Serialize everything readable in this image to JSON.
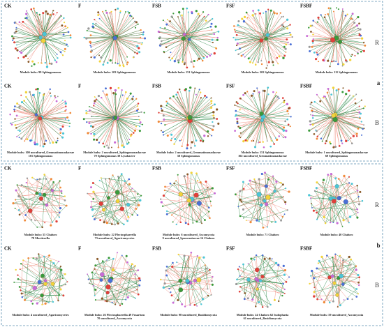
{
  "sections": [
    {
      "label": "a",
      "rows": [
        {
          "label": "R",
          "panels": [
            {
              "title": "CK",
              "hubs": [
                "Module hubs: 99 Sphingomonas"
              ]
            },
            {
              "title": "F",
              "hubs": [
                "Module hubs: 103 Sphingomonas"
              ]
            },
            {
              "title": "FSB",
              "hubs": [
                "Module hubs: 151 Sphingomonas"
              ]
            },
            {
              "title": "FSF",
              "hubs": [
                "Module hubs: 202 Sphingomonas"
              ]
            },
            {
              "title": "FSBF",
              "hubs": [
                "Module hubs: 111 Sphingomonas"
              ]
            }
          ]
        },
        {
          "label": "B",
          "panels": [
            {
              "title": "CK",
              "hubs": [
                "Module hubs: 100 uncultured_Gemmatimonadaceae",
                "101 Sphingomonas"
              ]
            },
            {
              "title": "F",
              "hubs": [
                "Module hubs: 2 uncultured_Sphingomonadaceae",
                "79 Sphingomonas  30 Lysobacter"
              ]
            },
            {
              "title": "FSB",
              "hubs": [
                "Module hubs: 2 uncultured_Gemmatimonadaceae",
                "58 Sphingomonas"
              ]
            },
            {
              "title": "FSF",
              "hubs": [
                "Module hubs: 151 Sphingomonas",
                "102 uncultured_Gemmatimonadaceae"
              ]
            },
            {
              "title": "FSBF",
              "hubs": [
                "Module hubs: 1 uncultured_Sphingomonadaceae",
                "69 Sphingomonas"
              ]
            }
          ]
        }
      ]
    },
    {
      "label": "b",
      "rows": [
        {
          "label": "R",
          "panels": [
            {
              "title": "CK",
              "hubs": [
                "Module hubs: 55 Chaluro",
                "78 Mortierella"
              ]
            },
            {
              "title": "F",
              "hubs": [
                "Module hubs: 22 Plectosphaerella",
                "73 uncultured_Agaricomycetes"
              ]
            },
            {
              "title": "FSB",
              "hubs": [
                "Module hubs: 6 uncultured_Ascomycota",
                "9 uncultured_Sporormiaceae  14 Chaluro"
              ]
            },
            {
              "title": "FSF",
              "hubs": [
                "Module hubs: 71 Chaluro"
              ]
            },
            {
              "title": "FSBF",
              "hubs": [
                "Module hubs: 40 Chaluro"
              ]
            }
          ]
        },
        {
          "label": "B",
          "panels": [
            {
              "title": "CK",
              "hubs": [
                "Module hubs: 4 uncultured_Agaricomycetes"
              ]
            },
            {
              "title": "F",
              "hubs": [
                "Module hubs: 26 Plectosphaerella  49 Fusarium",
                "70 uncultured_Ascomycota"
              ]
            },
            {
              "title": "FSB",
              "hubs": [
                "Module hubs: 98 uncultured_Basidiomycota"
              ]
            },
            {
              "title": "FSF",
              "hubs": [
                "Module hubs: 24 Chaluro  62 Isolophaeia",
                "61 uncultured_Basidiomycota"
              ]
            },
            {
              "title": "FSBF",
              "hubs": [
                "Module hubs: 59 uncultured_Ascomycota"
              ]
            }
          ]
        }
      ]
    }
  ]
}
